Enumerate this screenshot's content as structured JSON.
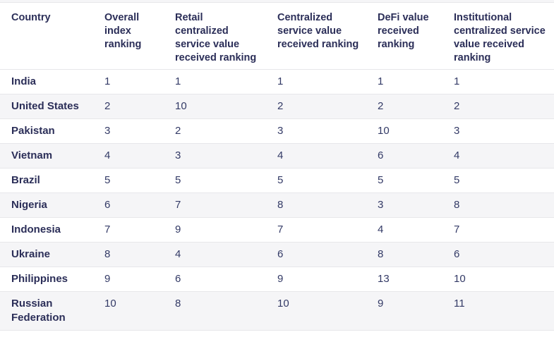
{
  "chart_data": {
    "type": "table",
    "columns": [
      "Country",
      "Overall index ranking",
      "Retail centralized service value received ranking",
      "Centralized service value received ranking",
      "DeFi value received ranking",
      "Institutional centralized service value received ranking"
    ],
    "rows": [
      {
        "country": "India",
        "values": [
          "1",
          "1",
          "1",
          "1",
          "1"
        ]
      },
      {
        "country": "United States",
        "values": [
          "2",
          "10",
          "2",
          "2",
          "2"
        ]
      },
      {
        "country": "Pakistan",
        "values": [
          "3",
          "2",
          "3",
          "10",
          "3"
        ]
      },
      {
        "country": "Vietnam",
        "values": [
          "4",
          "3",
          "4",
          "6",
          "4"
        ]
      },
      {
        "country": "Brazil",
        "values": [
          "5",
          "5",
          "5",
          "5",
          "5"
        ]
      },
      {
        "country": "Nigeria",
        "values": [
          "6",
          "7",
          "8",
          "3",
          "8"
        ]
      },
      {
        "country": "Indonesia",
        "values": [
          "7",
          "9",
          "7",
          "4",
          "7"
        ]
      },
      {
        "country": "Ukraine",
        "values": [
          "8",
          "4",
          "6",
          "8",
          "6"
        ]
      },
      {
        "country": "Philippines",
        "values": [
          "9",
          "6",
          "9",
          "13",
          "10"
        ]
      },
      {
        "country": "Russian Federation",
        "values": [
          "10",
          "8",
          "10",
          "9",
          "11"
        ]
      }
    ]
  },
  "colors": {
    "header_text": "#2b2e58",
    "body_text": "#333a66",
    "row_stripe": "#f5f5f7",
    "row_border": "#e7e7ea",
    "background": "#ffffff"
  }
}
